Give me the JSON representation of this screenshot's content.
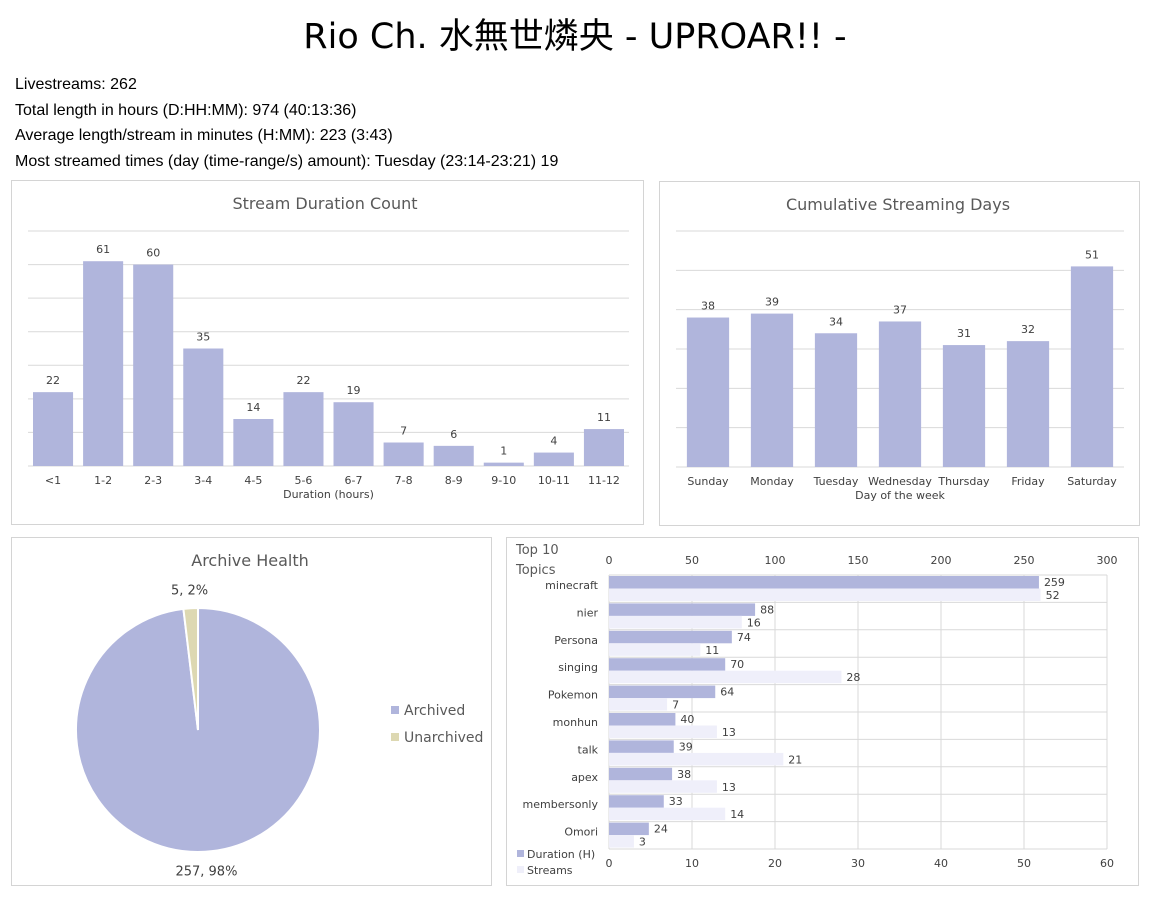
{
  "page": {
    "title": "Rio Ch. 水無世燐央 - UPROAR!! -",
    "stats": [
      "Livestreams: 262",
      "Total length in hours (D:HH:MM): 974 (40:13:36)",
      "Average length/stream in minutes (H:MM): 223 (3:43)",
      "Most streamed times (day (time-range/s) amount): Tuesday (23:14-23:21) 19"
    ]
  },
  "colors": {
    "primary": "#b0b5dc",
    "secondary": "#efeffa",
    "unarchived": "#ddd8b2"
  },
  "chart_data": [
    {
      "type": "bar",
      "title": "Stream Duration Count",
      "xlabel": "Duration (hours)",
      "ylabel": "",
      "categories": [
        "<1",
        "1-2",
        "2-3",
        "3-4",
        "4-5",
        "5-6",
        "6-7",
        "7-8",
        "8-9",
        "9-10",
        "10-11",
        "11-12"
      ],
      "values": [
        22,
        61,
        60,
        35,
        14,
        22,
        19,
        7,
        6,
        1,
        4,
        11
      ],
      "ylim": [
        0,
        70
      ],
      "grid": true
    },
    {
      "type": "bar",
      "title": "Cumulative Streaming Days",
      "xlabel": "Day of the week",
      "ylabel": "",
      "categories": [
        "Sunday",
        "Monday",
        "Tuesday",
        "Wednesday",
        "Thursday",
        "Friday",
        "Saturday"
      ],
      "values": [
        38,
        39,
        34,
        37,
        31,
        32,
        51
      ],
      "ylim": [
        0,
        60
      ],
      "grid": true
    },
    {
      "type": "pie",
      "title": "Archive Health",
      "labels": [
        "Archived",
        "Unarchived"
      ],
      "values": [
        257,
        5
      ],
      "percent_labels": [
        "257, 98%",
        "5, 2%"
      ],
      "legend": "right"
    },
    {
      "type": "bar",
      "orientation": "horizontal",
      "title": "Top 10 Topics",
      "categories": [
        "minecraft",
        "nier",
        "Persona",
        "singing",
        "Pokemon",
        "monhun",
        "talk",
        "apex",
        "membersonly",
        "Omori"
      ],
      "series": [
        {
          "name": "Duration (H)",
          "axis": "top",
          "values": [
            259,
            88,
            74,
            70,
            64,
            40,
            39,
            38,
            33,
            24
          ]
        },
        {
          "name": "Streams",
          "axis": "bottom",
          "values": [
            52,
            16,
            11,
            28,
            7,
            13,
            21,
            13,
            14,
            3
          ]
        }
      ],
      "top_axis": {
        "min": 0,
        "max": 300,
        "ticks": [
          "0",
          "50",
          "100",
          "150",
          "200",
          "250",
          "300"
        ]
      },
      "bottom_axis": {
        "min": 0,
        "max": 60,
        "ticks": [
          "0",
          "10",
          "20",
          "30",
          "40",
          "50",
          "60"
        ]
      },
      "legend": "bottom-left",
      "grid": true
    }
  ]
}
